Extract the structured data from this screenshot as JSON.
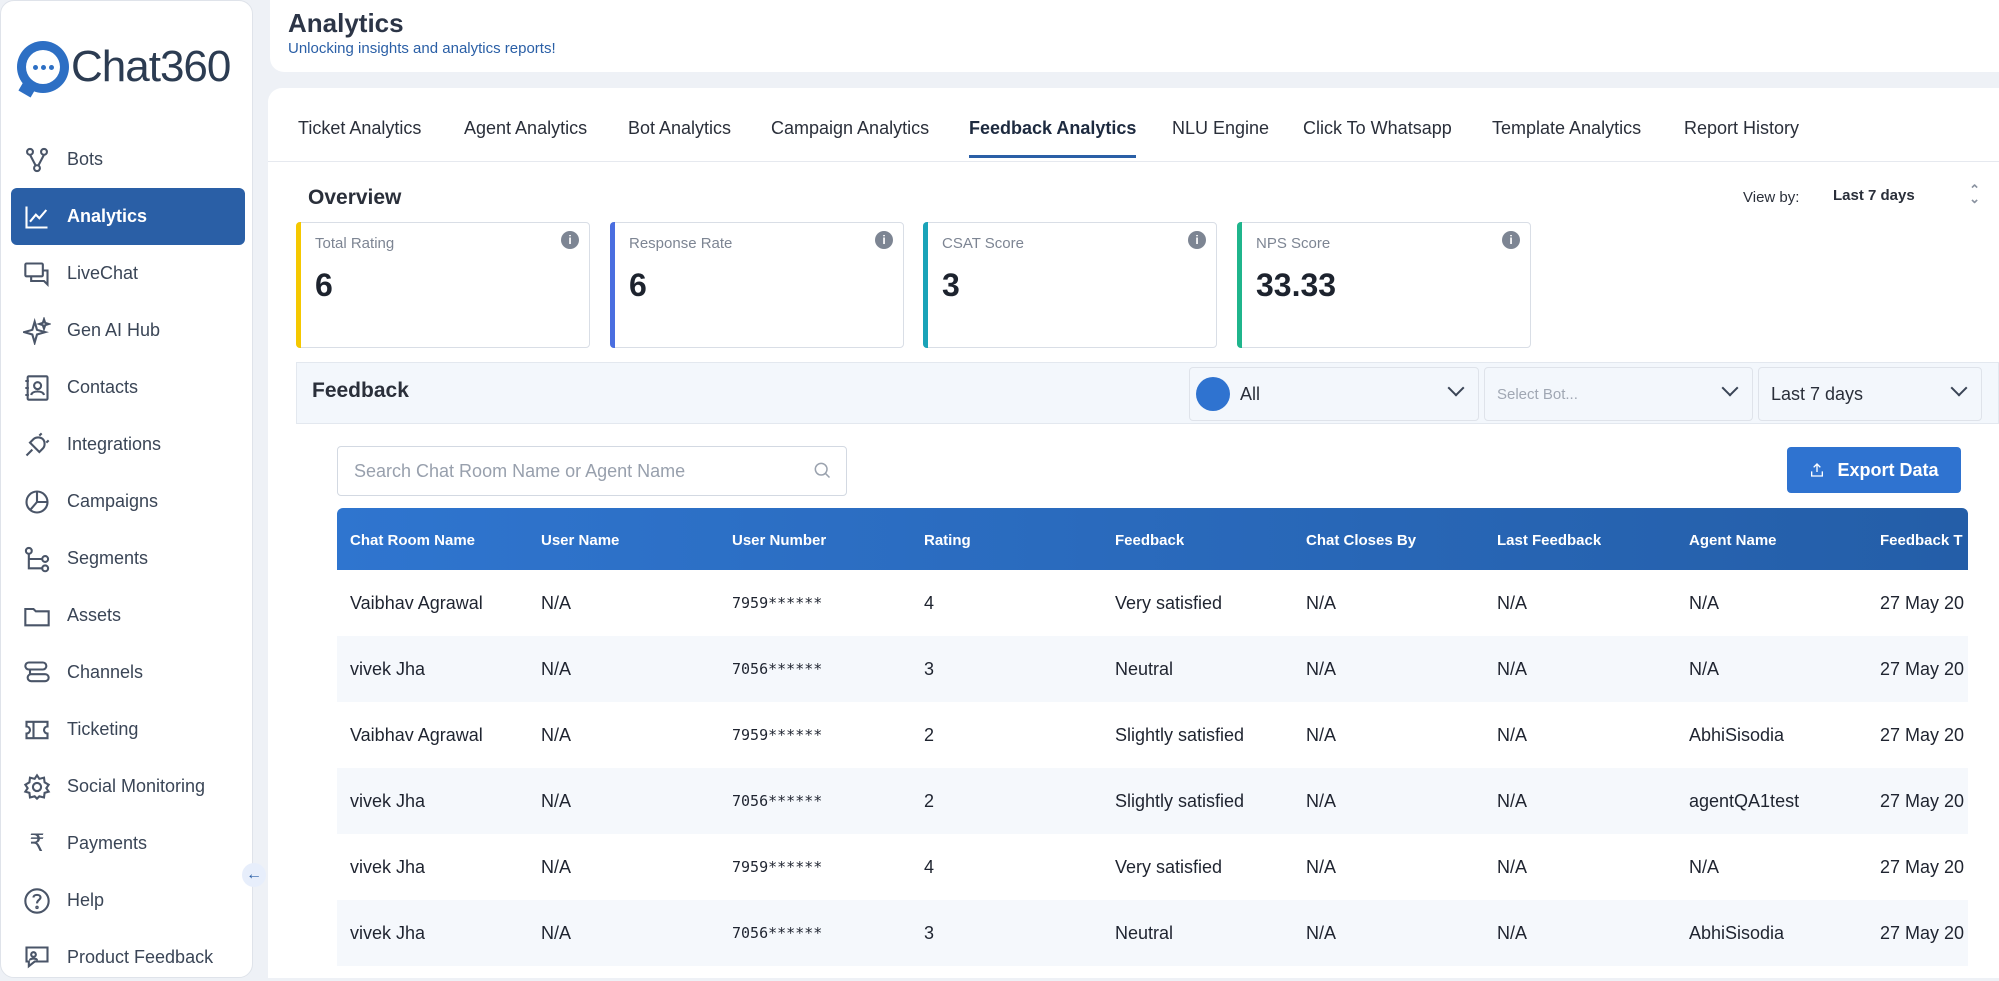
{
  "app": {
    "brand": "Chat360"
  },
  "sidebar": {
    "items": [
      {
        "label": "Bots",
        "icon": "bots-icon"
      },
      {
        "label": "Analytics",
        "icon": "analytics-icon",
        "active": true
      },
      {
        "label": "LiveChat",
        "icon": "livechat-icon"
      },
      {
        "label": "Gen AI Hub",
        "icon": "sparkle-icon"
      },
      {
        "label": "Contacts",
        "icon": "contacts-icon"
      },
      {
        "label": "Integrations",
        "icon": "plug-icon"
      },
      {
        "label": "Campaigns",
        "icon": "pie-icon"
      },
      {
        "label": "Segments",
        "icon": "segments-icon"
      },
      {
        "label": "Assets",
        "icon": "folder-icon"
      },
      {
        "label": "Channels",
        "icon": "channels-icon"
      },
      {
        "label": "Ticketing",
        "icon": "ticket-icon"
      },
      {
        "label": "Social Monitoring",
        "icon": "gear-icon"
      },
      {
        "label": "Payments",
        "icon": "rupee-icon"
      },
      {
        "label": "Help",
        "icon": "help-icon"
      },
      {
        "label": "Product Feedback",
        "icon": "feedback-icon"
      }
    ]
  },
  "header": {
    "title": "Analytics",
    "subtitle": "Unlocking insights and analytics reports!"
  },
  "tabs": [
    {
      "label": "Ticket Analytics"
    },
    {
      "label": "Agent Analytics"
    },
    {
      "label": "Bot Analytics"
    },
    {
      "label": "Campaign Analytics"
    },
    {
      "label": "Feedback Analytics",
      "active": true
    },
    {
      "label": "NLU Engine"
    },
    {
      "label": "Click To Whatsapp"
    },
    {
      "label": "Template Analytics"
    },
    {
      "label": "Report History"
    }
  ],
  "overview": {
    "title": "Overview",
    "view_by_label": "View by:",
    "view_by_value": "Last 7 days",
    "kpis": [
      {
        "label": "Total Rating",
        "value": "6",
        "color": "#f5c800"
      },
      {
        "label": "Response Rate",
        "value": "6",
        "color": "#4a6ee0"
      },
      {
        "label": "CSAT Score",
        "value": "3",
        "color": "#1aa3b8"
      },
      {
        "label": "NPS Score",
        "value": "33.33",
        "color": "#1fb58c"
      }
    ]
  },
  "feedback": {
    "title": "Feedback",
    "channel_filter": "All",
    "bot_filter_placeholder": "Select Bot...",
    "date_filter": "Last 7 days",
    "search_placeholder": "Search Chat Room Name or Agent Name",
    "export_label": "Export Data",
    "columns": [
      "Chat Room Name",
      "User Name",
      "User Number",
      "Rating",
      "Feedback",
      "Chat Closes By",
      "Last Feedback",
      "Agent Name",
      "Feedback T"
    ],
    "rows": [
      [
        "Vaibhav Agrawal",
        "N/A",
        "7959******",
        "4",
        "Very satisfied",
        "N/A",
        "N/A",
        "N/A",
        "27 May 20"
      ],
      [
        "vivek Jha",
        "N/A",
        "7056******",
        "3",
        "Neutral",
        "N/A",
        "N/A",
        "N/A",
        "27 May 20"
      ],
      [
        "Vaibhav Agrawal",
        "N/A",
        "7959******",
        "2",
        "Slightly satisfied",
        "N/A",
        "N/A",
        "AbhiSisodia",
        "27 May 20"
      ],
      [
        "vivek Jha",
        "N/A",
        "7056******",
        "2",
        "Slightly satisfied",
        "N/A",
        "N/A",
        "agentQA1test",
        "27 May 20"
      ],
      [
        "vivek Jha",
        "N/A",
        "7959******",
        "4",
        "Very satisfied",
        "N/A",
        "N/A",
        "N/A",
        "27 May 20"
      ],
      [
        "vivek Jha",
        "N/A",
        "7056******",
        "3",
        "Neutral",
        "N/A",
        "N/A",
        "AbhiSisodia",
        "27 May 20"
      ]
    ]
  },
  "colors": {
    "accent": "#2a5fa6",
    "button": "#2f73d0"
  }
}
